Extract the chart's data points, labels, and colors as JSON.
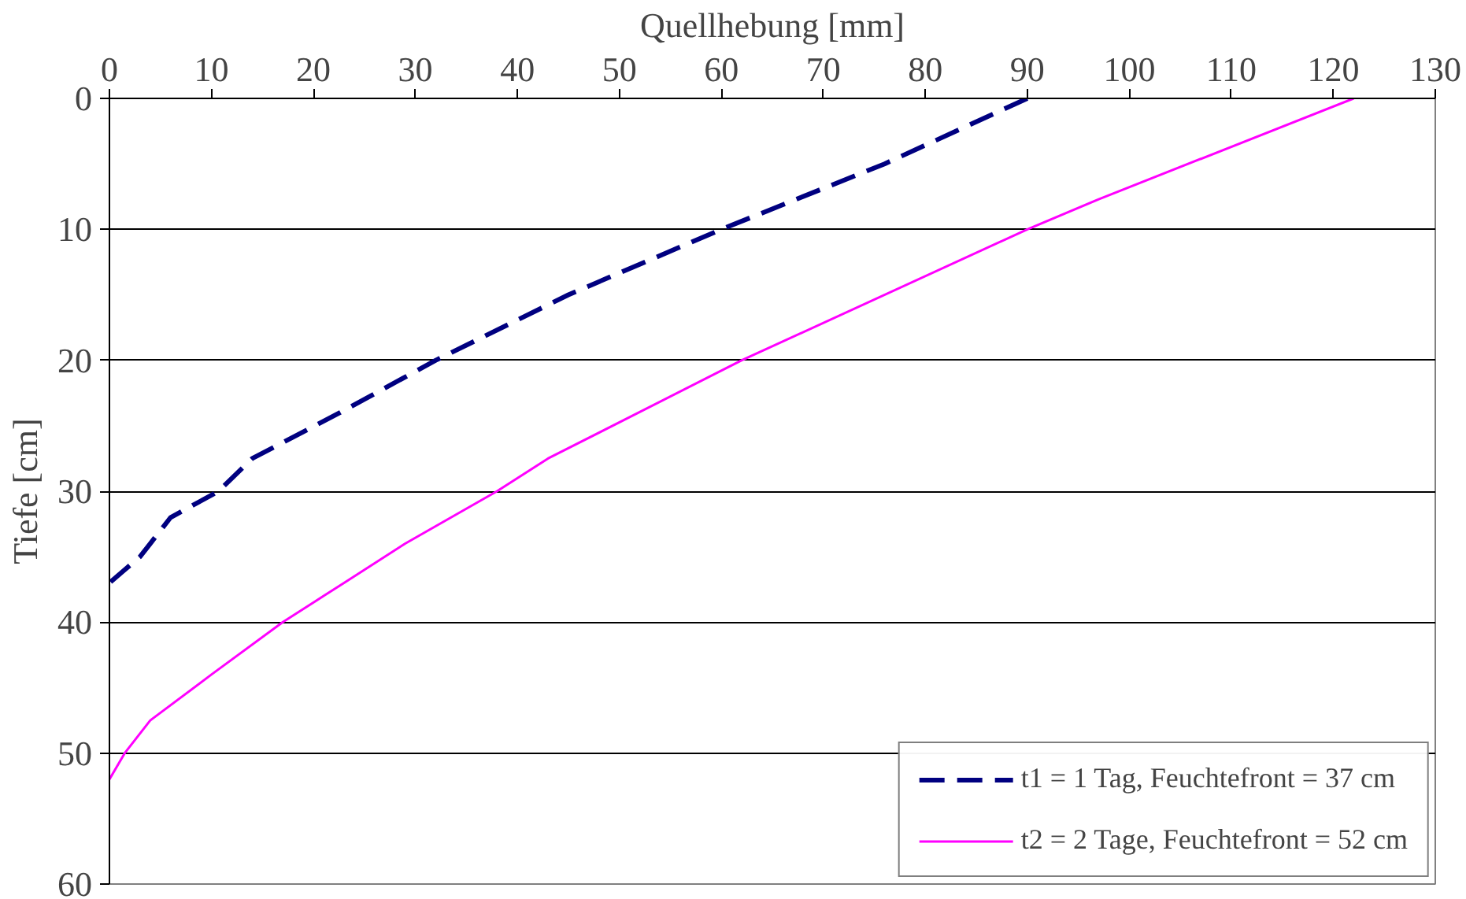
{
  "chart_data": {
    "type": "line",
    "xlabel": "Quellhebung [mm]",
    "ylabel": "Tiefe [cm]",
    "xlim": [
      0,
      130
    ],
    "xticks": [
      0,
      10,
      20,
      30,
      40,
      50,
      60,
      70,
      80,
      90,
      100,
      110,
      120,
      130
    ],
    "ylim": [
      60,
      0
    ],
    "yticks": [
      0,
      10,
      20,
      30,
      40,
      50,
      60
    ],
    "grid": "y",
    "legend": "bottom right",
    "marker": "none",
    "series": [
      {
        "name": "t1 = 1 Tag, Feuchtefront = 37 cm",
        "color": "#000080",
        "line_style": "dashed",
        "x": [
          90,
          76,
          60,
          45,
          32,
          22.6,
          14,
          10.7,
          6,
          4,
          3,
          1.5,
          0
        ],
        "values": [
          0,
          5,
          10,
          15,
          20,
          24,
          27.5,
          30,
          32,
          34,
          35,
          36,
          37
        ]
      },
      {
        "name": "t2 = 2 Tage, Feuchtefront = 52 cm",
        "color": "#ff00ff",
        "line_style": "solid",
        "x": [
          122,
          97,
          90,
          62,
          43,
          38,
          29,
          23,
          21,
          17,
          10,
          4,
          1.5,
          0
        ],
        "values": [
          0,
          7.7,
          10,
          20,
          27.5,
          30,
          34,
          37,
          38,
          40,
          44,
          47.5,
          50,
          52
        ]
      }
    ]
  }
}
